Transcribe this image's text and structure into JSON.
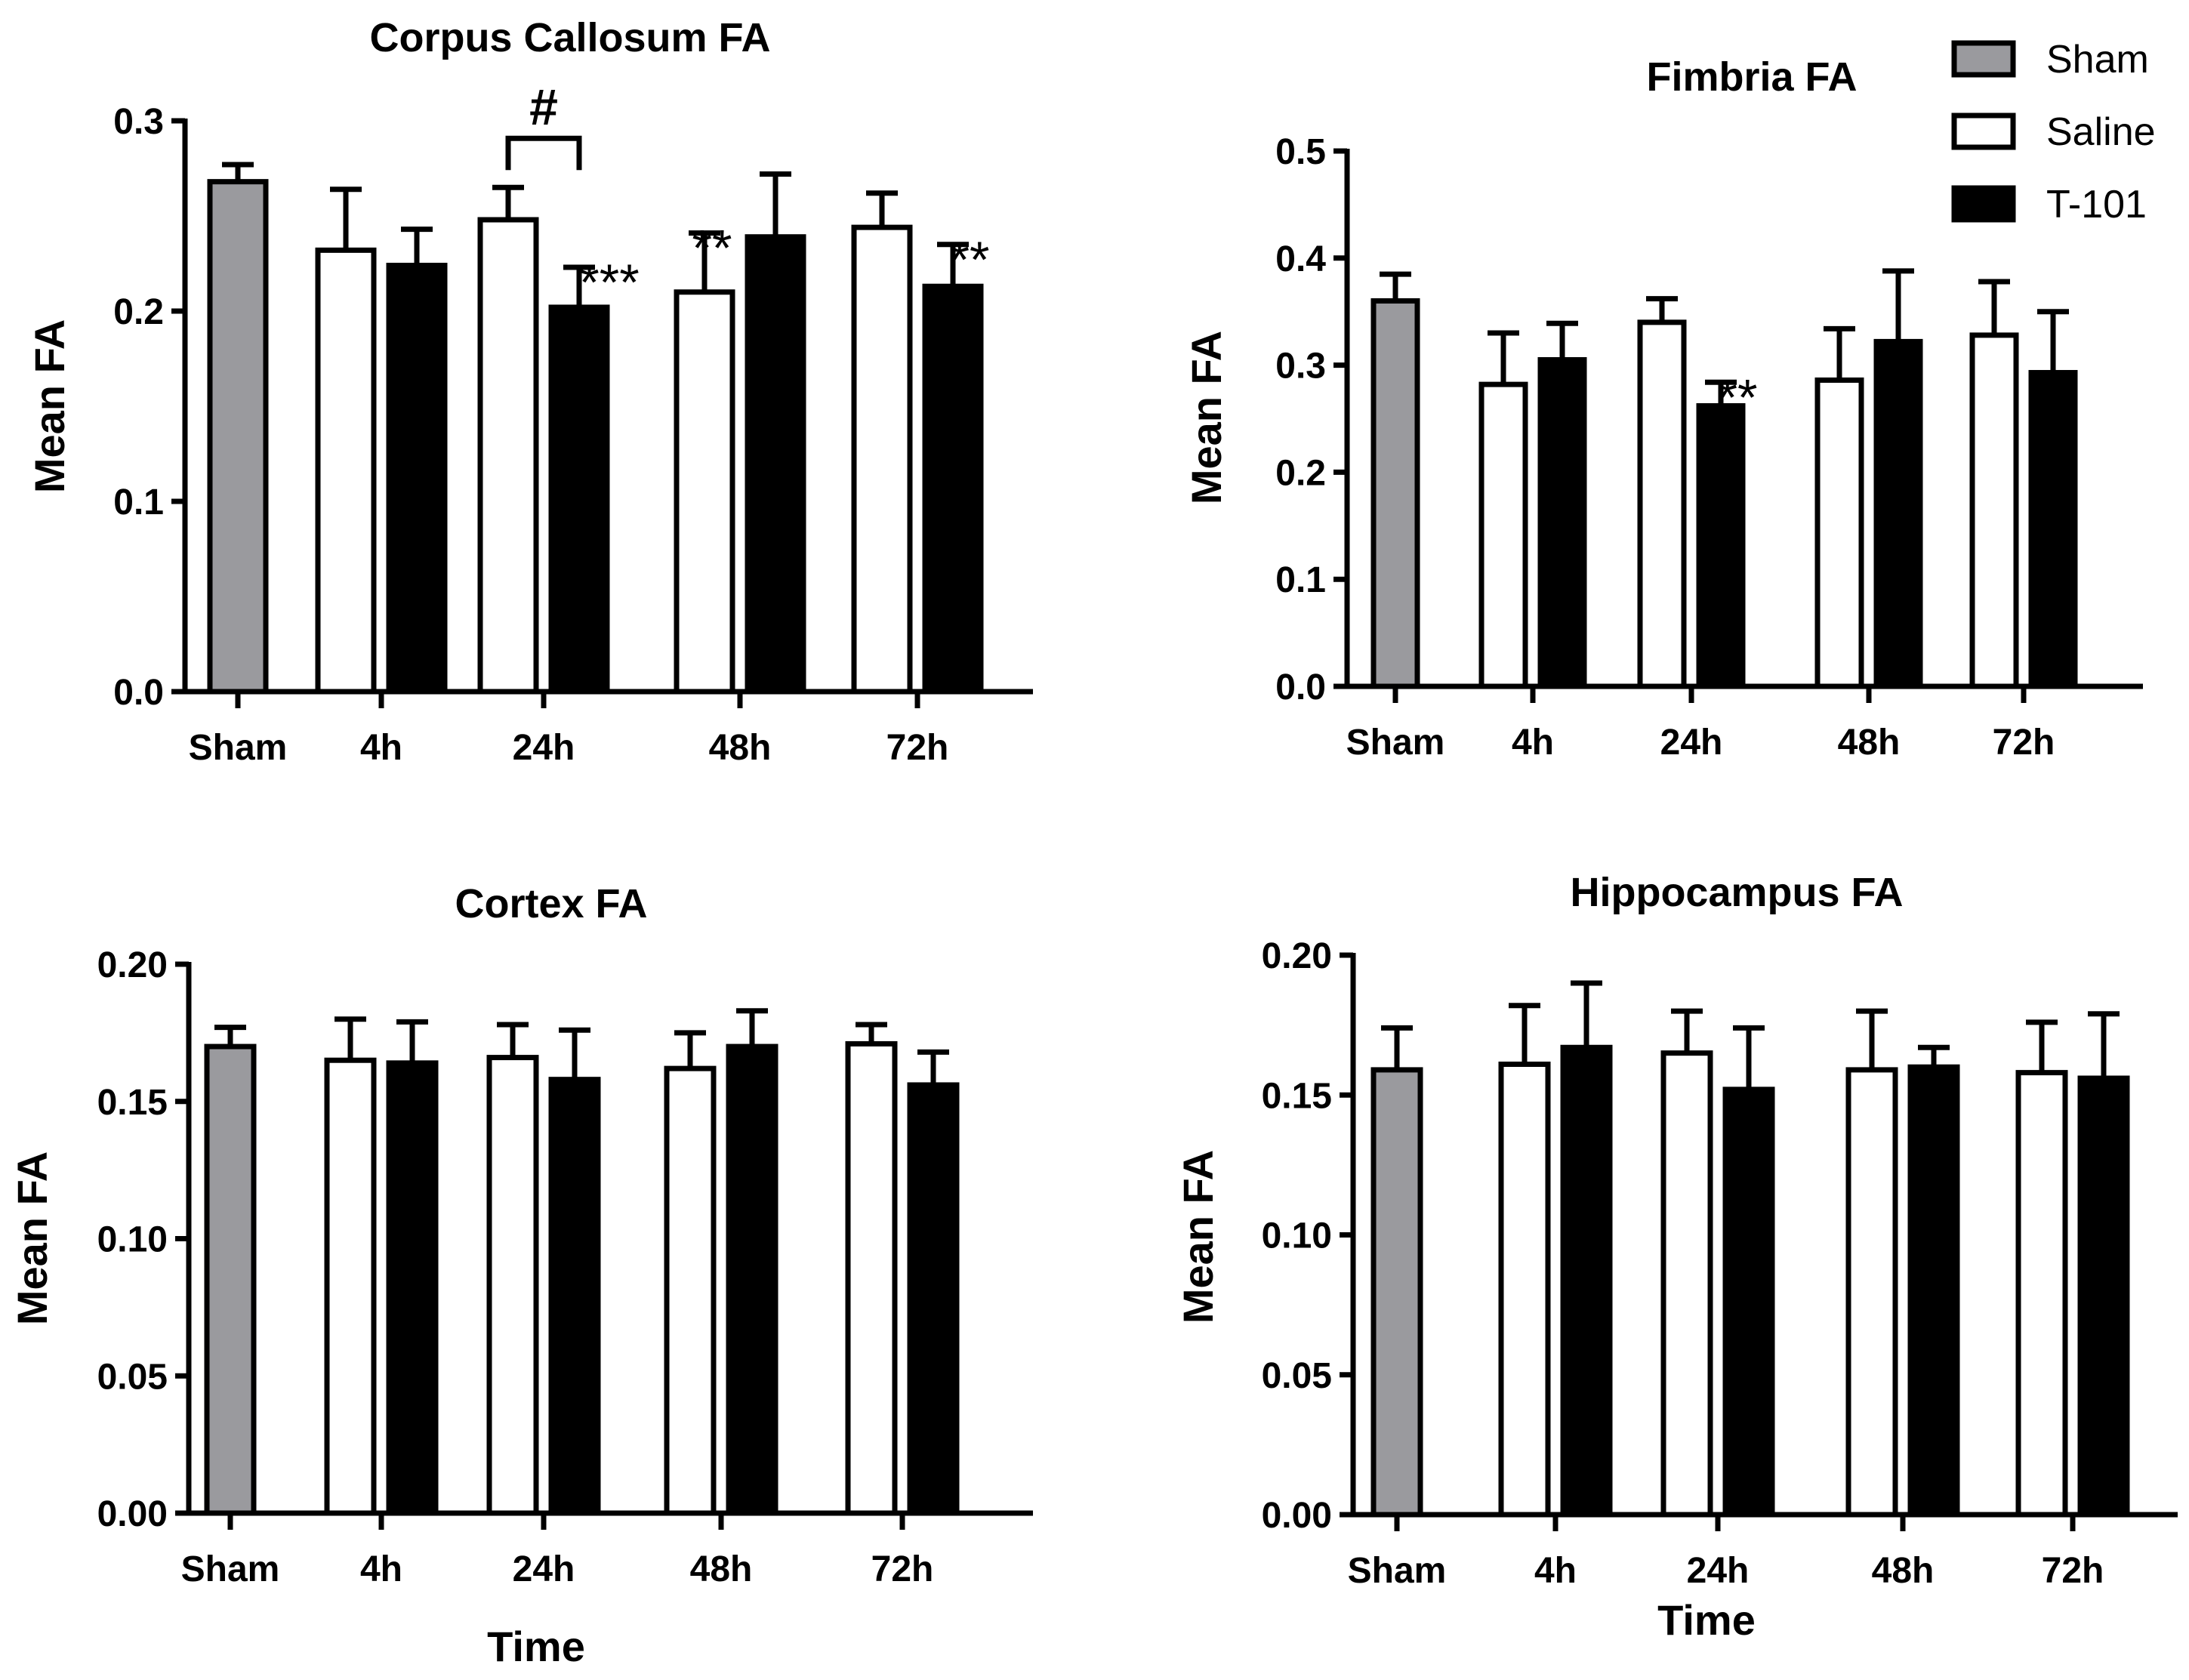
{
  "legend": {
    "items": [
      {
        "label": "Sham",
        "fill": "#9a9a9e",
        "stroke": "#000000"
      },
      {
        "label": "Saline",
        "fill": "#ffffff",
        "stroke": "#000000"
      },
      {
        "label": "T-101",
        "fill": "#000000",
        "stroke": "#000000"
      }
    ]
  },
  "chart_data": [
    {
      "type": "bar",
      "title": "Corpus Callosum FA",
      "xlabel": "",
      "ylabel": "Mean FA",
      "ylim": [
        0,
        0.3
      ],
      "yticks": [
        "0.0",
        "0.1",
        "0.2",
        "0.3"
      ],
      "categories": [
        "Sham",
        "4h",
        "24h",
        "48h",
        "72h"
      ],
      "series": [
        {
          "name": "Sham",
          "values": [
            0.268,
            null,
            null,
            null,
            null
          ],
          "errors": [
            0.009,
            null,
            null,
            null,
            null
          ]
        },
        {
          "name": "Saline",
          "values": [
            null,
            0.232,
            0.248,
            0.21,
            0.244
          ],
          "errors": [
            null,
            0.032,
            0.017,
            0.031,
            0.018
          ]
        },
        {
          "name": "T-101",
          "values": [
            null,
            0.224,
            0.202,
            0.239,
            0.213
          ],
          "errors": [
            null,
            0.019,
            0.021,
            0.033,
            0.022
          ]
        }
      ],
      "annotations": [
        {
          "text": "#",
          "category": "24h",
          "type": "bracket",
          "between": [
            "Saline",
            "T-101"
          ]
        },
        {
          "text": "***",
          "category": "24h",
          "series": "T-101"
        },
        {
          "text": "**",
          "category": "48h",
          "series": "Saline"
        },
        {
          "text": "**",
          "category": "72h",
          "series": "T-101"
        }
      ]
    },
    {
      "type": "bar",
      "title": "Fimbria FA",
      "xlabel": "",
      "ylabel": "Mean FA",
      "ylim": [
        0,
        0.5
      ],
      "yticks": [
        "0.0",
        "0.1",
        "0.2",
        "0.3",
        "0.4",
        "0.5"
      ],
      "categories": [
        "Sham",
        "4h",
        "24h",
        "48h",
        "72h"
      ],
      "series": [
        {
          "name": "Sham",
          "values": [
            0.36,
            null,
            null,
            null,
            null
          ],
          "errors": [
            0.025,
            null,
            null,
            null,
            null
          ]
        },
        {
          "name": "Saline",
          "values": [
            null,
            0.282,
            0.34,
            0.286,
            0.328
          ],
          "errors": [
            null,
            0.048,
            0.022,
            0.048,
            0.05
          ]
        },
        {
          "name": "T-101",
          "values": [
            null,
            0.305,
            0.262,
            0.322,
            0.293
          ],
          "errors": [
            null,
            0.034,
            0.022,
            0.066,
            0.057
          ]
        }
      ],
      "annotations": [
        {
          "text": "**",
          "category": "24h",
          "series": "T-101"
        }
      ]
    },
    {
      "type": "bar",
      "title": "Cortex FA",
      "xlabel": "Time",
      "ylabel": "Mean FA",
      "ylim": [
        0,
        0.2
      ],
      "yticks": [
        "0.00",
        "0.05",
        "0.10",
        "0.15",
        "0.20"
      ],
      "categories": [
        "Sham",
        "4h",
        "24h",
        "48h",
        "72h"
      ],
      "series": [
        {
          "name": "Sham",
          "values": [
            0.17,
            null,
            null,
            null,
            null
          ],
          "errors": [
            0.007,
            null,
            null,
            null,
            null
          ]
        },
        {
          "name": "Saline",
          "values": [
            null,
            0.165,
            0.166,
            0.162,
            0.171
          ],
          "errors": [
            null,
            0.015,
            0.012,
            0.013,
            0.007
          ]
        },
        {
          "name": "T-101",
          "values": [
            null,
            0.164,
            0.158,
            0.17,
            0.156
          ],
          "errors": [
            null,
            0.015,
            0.018,
            0.013,
            0.012
          ]
        }
      ],
      "annotations": []
    },
    {
      "type": "bar",
      "title": "Hippocampus FA",
      "xlabel": "Time",
      "ylabel": "Mean FA",
      "ylim": [
        0,
        0.2
      ],
      "yticks": [
        "0.00",
        "0.05",
        "0.10",
        "0.15",
        "0.20"
      ],
      "categories": [
        "Sham",
        "4h",
        "24h",
        "48h",
        "72h"
      ],
      "series": [
        {
          "name": "Sham",
          "values": [
            0.159,
            null,
            null,
            null,
            null
          ],
          "errors": [
            0.015,
            null,
            null,
            null,
            null
          ]
        },
        {
          "name": "Saline",
          "values": [
            null,
            0.161,
            0.165,
            0.159,
            0.158
          ],
          "errors": [
            null,
            0.021,
            0.015,
            0.021,
            0.018
          ]
        },
        {
          "name": "T-101",
          "values": [
            null,
            0.167,
            0.152,
            0.16,
            0.156
          ],
          "errors": [
            null,
            0.023,
            0.022,
            0.007,
            0.023
          ]
        }
      ],
      "annotations": []
    }
  ]
}
